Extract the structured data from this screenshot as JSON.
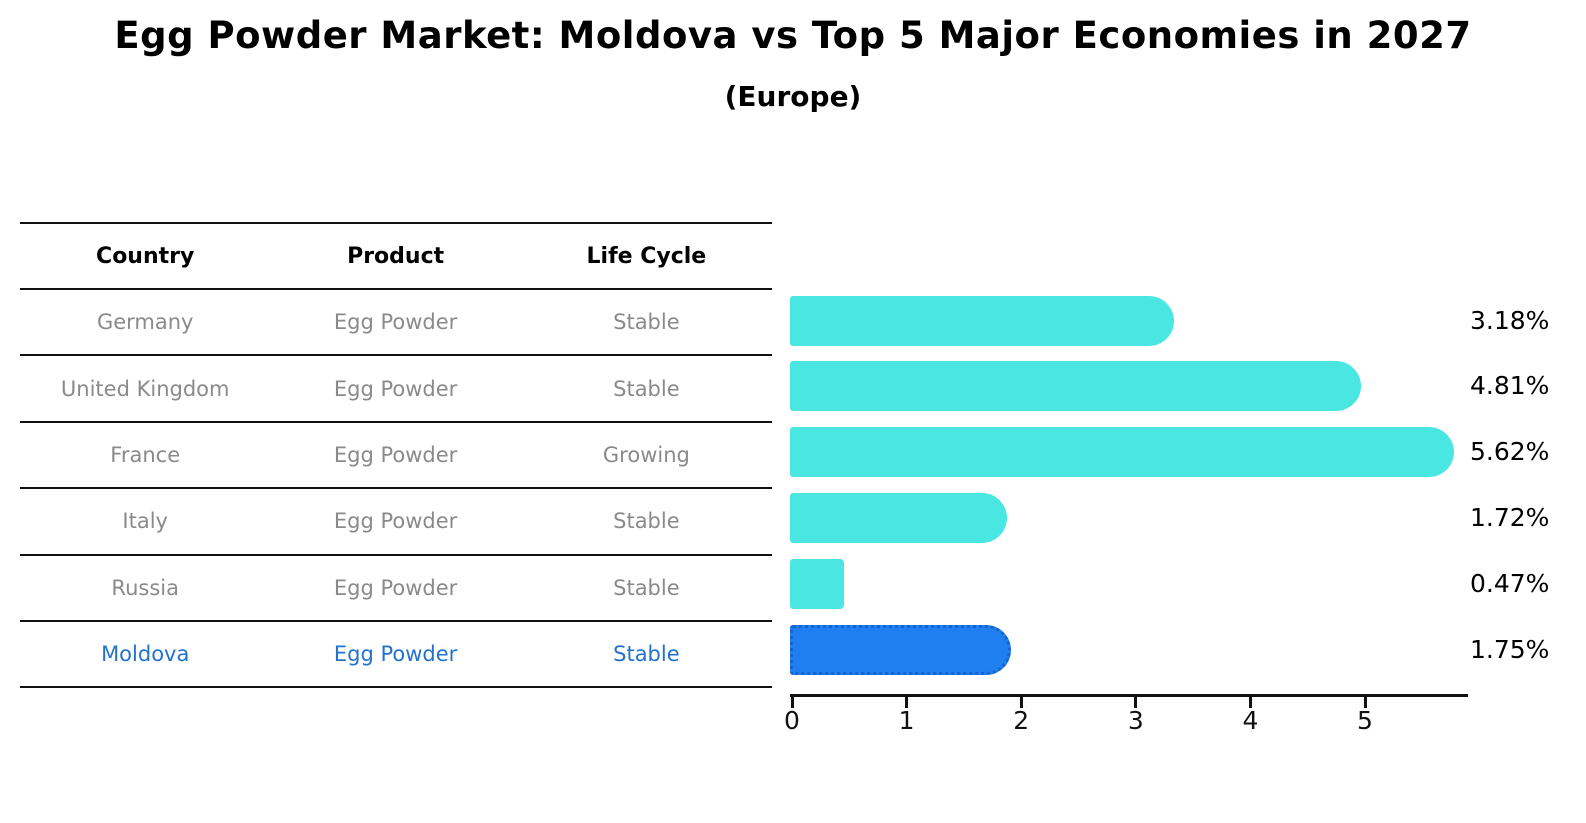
{
  "title": "Egg Powder Market: Moldova vs Top 5 Major Economies in 2027",
  "subtitle": "(Europe)",
  "table": {
    "headers": [
      "Country",
      "Product",
      "Life Cycle"
    ],
    "rows": [
      {
        "country": "Germany",
        "product": "Egg Powder",
        "life_cycle": "Stable",
        "highlight": false
      },
      {
        "country": "United Kingdom",
        "product": "Egg Powder",
        "life_cycle": "Stable",
        "highlight": false
      },
      {
        "country": "France",
        "product": "Egg Powder",
        "life_cycle": "Growing",
        "highlight": false
      },
      {
        "country": "Italy",
        "product": "Egg Powder",
        "life_cycle": "Stable",
        "highlight": false
      },
      {
        "country": "Russia",
        "product": "Egg Powder",
        "life_cycle": "Stable",
        "highlight": false
      },
      {
        "country": "Moldova",
        "product": "Egg Powder",
        "life_cycle": "Stable",
        "highlight": true
      }
    ]
  },
  "chart_data": {
    "type": "bar",
    "orientation": "horizontal",
    "title": "Egg Powder Market: Moldova vs Top 5 Major Economies in 2027",
    "subtitle": "(Europe)",
    "categories": [
      "Germany",
      "United Kingdom",
      "France",
      "Italy",
      "Russia",
      "Moldova"
    ],
    "values": [
      3.18,
      4.81,
      5.62,
      1.72,
      0.47,
      1.75
    ],
    "value_labels": [
      "3.18%",
      "4.81%",
      "5.62%",
      "1.72%",
      "0.47%",
      "1.75%"
    ],
    "unit": "%",
    "xlabel": "",
    "ylabel": "",
    "x_ticks": [
      0,
      1,
      2,
      3,
      4,
      5
    ],
    "xlim": [
      0,
      5.92
    ],
    "grid": false,
    "legend": "none",
    "bar_color": "#4AE7E2",
    "highlight_index": 5,
    "highlight_color": "#1F7FF0",
    "highlight_border_color": "#1563CF",
    "text_colors": {
      "row_text": "#8A8A8A",
      "highlight_text": "#2273CE",
      "value_text": "#000000"
    }
  }
}
